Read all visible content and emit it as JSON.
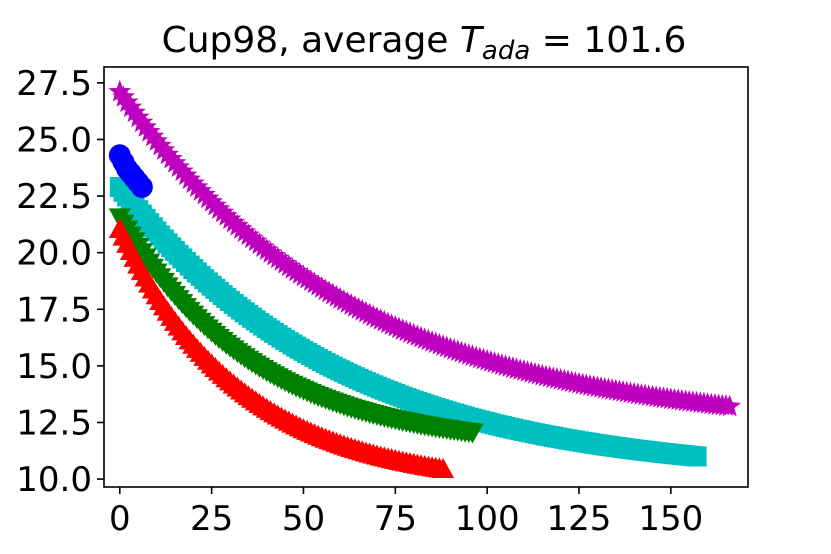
{
  "chart_data": {
    "type": "scatter",
    "title": {
      "prefix": "Cup98, average ",
      "var": "T",
      "sub": "ada",
      "suffix": " = 101.6"
    },
    "xlabel": "",
    "ylabel": "",
    "xlim": [
      -4.3,
      171
    ],
    "ylim": [
      9.65,
      28.2
    ],
    "xticks": [
      0,
      25,
      50,
      75,
      100,
      125,
      150
    ],
    "yticks": [
      10.0,
      12.5,
      15.0,
      17.5,
      20.0,
      22.5,
      25.0,
      27.5
    ],
    "ytick_labels": [
      "10.0",
      "12.5",
      "15.0",
      "17.5",
      "20.0",
      "22.5",
      "25.0",
      "27.5"
    ],
    "grid": false,
    "series": [
      {
        "name": "blue-circle",
        "marker": "circle",
        "color": "#0000ff",
        "x": [
          0,
          1,
          2,
          3,
          4,
          5,
          6
        ],
        "y": [
          24.3,
          24.0,
          23.7,
          23.5,
          23.3,
          23.1,
          22.9
        ]
      },
      {
        "name": "green-down-triangle",
        "marker": "triangle-down",
        "color": "#008000",
        "curve": {
          "start": [
            0,
            21.6
          ],
          "end": [
            96,
            12.1
          ],
          "shape": "decay"
        }
      },
      {
        "name": "red-up-triangle",
        "marker": "triangle-up",
        "color": "#ff0000",
        "curve": {
          "start": [
            0,
            21.0
          ],
          "end": [
            88,
            10.4
          ],
          "shape": "decay"
        }
      },
      {
        "name": "cyan-square",
        "marker": "square",
        "color": "#00bfbf",
        "curve": {
          "start": [
            0,
            22.9
          ],
          "end": [
            157,
            11.0
          ],
          "shape": "decay"
        }
      },
      {
        "name": "magenta-star",
        "marker": "star",
        "color": "#bf00bf",
        "curve": {
          "start": [
            0,
            27.1
          ],
          "end": [
            166,
            13.2
          ],
          "shape": "decay"
        }
      }
    ]
  }
}
